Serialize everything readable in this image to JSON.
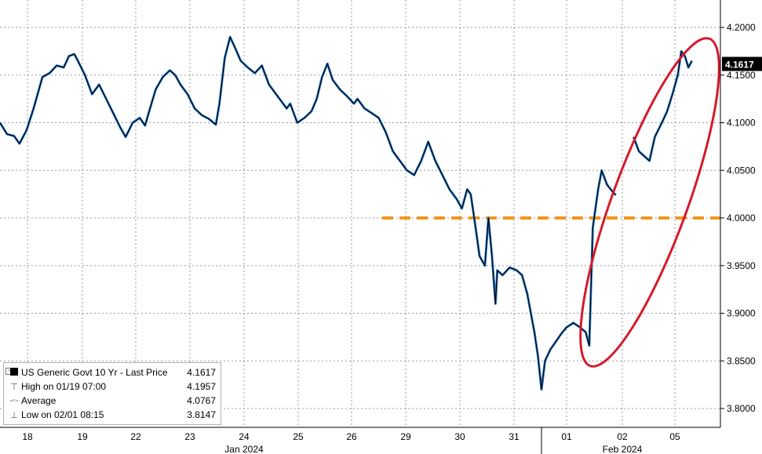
{
  "chart_data": {
    "type": "line",
    "title": "",
    "xlabel": "",
    "ylabel": "",
    "series_name": "US Generic Govt 10 Yr - Last Price",
    "last_value": "4.1617",
    "ylim": [
      3.78,
      4.22
    ],
    "y_ticks": [
      "4.2000",
      "4.1500",
      "4.1000",
      "4.0500",
      "4.0000",
      "3.9500",
      "3.9000",
      "3.8500",
      "3.8000"
    ],
    "x_tick_labels": [
      "18",
      "19",
      "22",
      "23",
      "24",
      "25",
      "26",
      "29",
      "30",
      "31",
      "01",
      "02",
      "05"
    ],
    "month_labels": [
      "Jan 2024",
      "Feb 2024"
    ],
    "reference_line": 4.0,
    "series": [
      {
        "name": "US Generic Govt 10 Yr - Last Price",
        "points": [
          [
            0.0,
            4.1
          ],
          [
            0.2,
            4.088
          ],
          [
            0.4,
            4.086
          ],
          [
            0.55,
            4.078
          ],
          [
            0.75,
            4.092
          ],
          [
            0.95,
            4.115
          ],
          [
            1.2,
            4.148
          ],
          [
            1.4,
            4.152
          ],
          [
            1.6,
            4.16
          ],
          [
            1.8,
            4.158
          ],
          [
            1.95,
            4.17
          ],
          [
            2.1,
            4.172
          ],
          [
            2.2,
            4.165
          ],
          [
            2.4,
            4.15
          ],
          [
            2.6,
            4.13
          ],
          [
            2.8,
            4.14
          ],
          [
            3.0,
            4.125
          ],
          [
            3.2,
            4.11
          ],
          [
            3.4,
            4.095
          ],
          [
            3.55,
            4.085
          ],
          [
            3.75,
            4.1
          ],
          [
            3.95,
            4.105
          ],
          [
            4.1,
            4.097
          ],
          [
            4.2,
            4.11
          ],
          [
            4.4,
            4.135
          ],
          [
            4.6,
            4.148
          ],
          [
            4.8,
            4.155
          ],
          [
            4.95,
            4.15
          ],
          [
            5.1,
            4.14
          ],
          [
            5.3,
            4.13
          ],
          [
            5.5,
            4.115
          ],
          [
            5.7,
            4.108
          ],
          [
            5.9,
            4.104
          ],
          [
            6.1,
            4.098
          ],
          [
            6.2,
            4.12
          ],
          [
            6.35,
            4.168
          ],
          [
            6.5,
            4.19
          ],
          [
            6.65,
            4.178
          ],
          [
            6.8,
            4.165
          ],
          [
            7.0,
            4.158
          ],
          [
            7.2,
            4.152
          ],
          [
            7.4,
            4.16
          ],
          [
            7.6,
            4.14
          ],
          [
            7.8,
            4.13
          ],
          [
            8.1,
            4.115
          ],
          [
            8.2,
            4.12
          ],
          [
            8.4,
            4.1
          ],
          [
            8.6,
            4.105
          ],
          [
            8.8,
            4.112
          ],
          [
            8.95,
            4.125
          ],
          [
            9.1,
            4.148
          ],
          [
            9.25,
            4.162
          ],
          [
            9.4,
            4.145
          ],
          [
            9.6,
            4.135
          ],
          [
            9.8,
            4.128
          ],
          [
            10.0,
            4.12
          ],
          [
            10.1,
            4.125
          ],
          [
            10.3,
            4.115
          ],
          [
            10.5,
            4.11
          ],
          [
            10.7,
            4.105
          ],
          [
            10.9,
            4.09
          ],
          [
            11.1,
            4.07
          ],
          [
            11.3,
            4.06
          ],
          [
            11.5,
            4.05
          ],
          [
            11.7,
            4.045
          ],
          [
            11.9,
            4.06
          ],
          [
            12.1,
            4.08
          ],
          [
            12.3,
            4.06
          ],
          [
            12.5,
            4.045
          ],
          [
            12.7,
            4.03
          ],
          [
            12.9,
            4.02
          ],
          [
            13.05,
            4.01
          ],
          [
            13.2,
            4.03
          ],
          [
            13.3,
            4.025
          ],
          [
            13.4,
            4.0
          ],
          [
            13.55,
            3.96
          ],
          [
            13.7,
            3.95
          ],
          [
            13.8,
            4.0
          ],
          [
            13.9,
            3.96
          ],
          [
            14.0,
            3.91
          ],
          [
            14.05,
            3.945
          ],
          [
            14.2,
            3.94
          ],
          [
            14.4,
            3.948
          ],
          [
            14.6,
            3.945
          ],
          [
            14.75,
            3.94
          ],
          [
            14.9,
            3.92
          ],
          [
            15.0,
            3.9
          ],
          [
            15.1,
            3.88
          ],
          [
            15.2,
            3.855
          ],
          [
            15.3,
            3.82
          ],
          [
            15.4,
            3.85
          ],
          [
            15.55,
            3.862
          ],
          [
            15.7,
            3.87
          ],
          [
            15.85,
            3.878
          ],
          [
            16.0,
            3.885
          ],
          [
            16.2,
            3.89
          ],
          [
            16.4,
            3.885
          ],
          [
            16.55,
            3.88
          ],
          [
            16.65,
            3.866
          ],
          [
            16.75,
            3.99
          ],
          [
            16.9,
            4.03
          ],
          [
            17.0,
            4.05
          ],
          [
            17.15,
            4.035
          ],
          [
            17.3,
            4.028
          ],
          [
            17.4,
            4.024
          ],
          [
            17.9,
            4.085
          ],
          [
            18.05,
            4.07
          ],
          [
            18.2,
            4.065
          ],
          [
            18.35,
            4.06
          ],
          [
            18.5,
            4.085
          ],
          [
            18.7,
            4.1
          ],
          [
            18.85,
            4.112
          ],
          [
            19.0,
            4.13
          ],
          [
            19.15,
            4.15
          ],
          [
            19.25,
            4.175
          ],
          [
            19.35,
            4.17
          ],
          [
            19.45,
            4.158
          ],
          [
            19.55,
            4.165
          ]
        ]
      }
    ],
    "legend": {
      "placement": "bottom-left",
      "rows": [
        {
          "label": "US Generic Govt 10 Yr - Last Price",
          "value": "4.1617"
        },
        {
          "label": "High on 01/19 07:00",
          "value": "4.1957"
        },
        {
          "label": "Average",
          "value": "4.0767"
        },
        {
          "label": "Low on 02/01 08:15",
          "value": "3.8147"
        }
      ]
    },
    "annotation": "red ellipse around Feb 02–05 rally",
    "grid": true
  },
  "colors": {
    "price_line": "#000000",
    "price_shadow": "#2e7fd0",
    "reference_line": "#f0961e",
    "annotation": "#d51a2a",
    "grid": "#9a9a9a",
    "last_price_tag": "#000000"
  }
}
